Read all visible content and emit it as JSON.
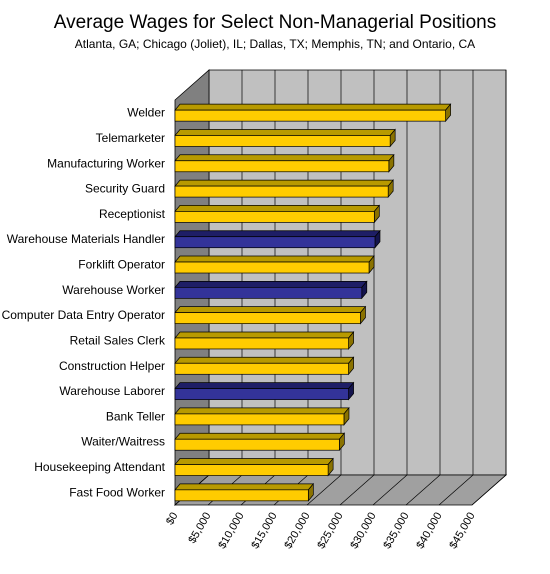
{
  "chart_data": {
    "type": "bar",
    "orientation": "horizontal",
    "title": "Average Wages for Select Non-Managerial Positions",
    "subtitle": "Atlanta, GA; Chicago (Joliet), IL; Dallas, TX; Memphis, TN; and Ontario, CA",
    "categories": [
      "Welder",
      "Telemarketer",
      "Manufacturing Worker",
      "Security Guard",
      "Receptionist",
      "Warehouse Materials Handler",
      "Forklift Operator",
      "Warehouse Worker",
      "Computer Data Entry Operator",
      "Retail Sales Clerk",
      "Construction Helper",
      "Warehouse Laborer",
      "Bank Teller",
      "Waiter/Waitress",
      "Housekeeping Attendant",
      "Fast Food Worker"
    ],
    "values": [
      41000,
      32600,
      32400,
      32300,
      30200,
      30300,
      29400,
      28300,
      28100,
      26300,
      26300,
      26300,
      25600,
      24900,
      23200,
      20200
    ],
    "highlighted": [
      false,
      false,
      false,
      false,
      false,
      true,
      false,
      true,
      false,
      false,
      false,
      true,
      false,
      false,
      false,
      false
    ],
    "x_ticks": [
      "$0",
      "$5,000",
      "$10,000",
      "$15,000",
      "$20,000",
      "$25,000",
      "$30,000",
      "$35,000",
      "$40,000",
      "$45,000"
    ],
    "xlim": [
      0,
      45000
    ],
    "grid": true,
    "legend": "none",
    "colors": {
      "bar_front": "#FFCC00",
      "bar_top": "#B89A00",
      "bar_side": "#8A7200",
      "highlight_front": "#333399",
      "highlight_top": "#1E1E66",
      "highlight_side": "#14144D",
      "plot_background": "#C0C0C0",
      "wall": "#808080",
      "floor": "#A0A0A0",
      "gridline": "#000000"
    }
  }
}
